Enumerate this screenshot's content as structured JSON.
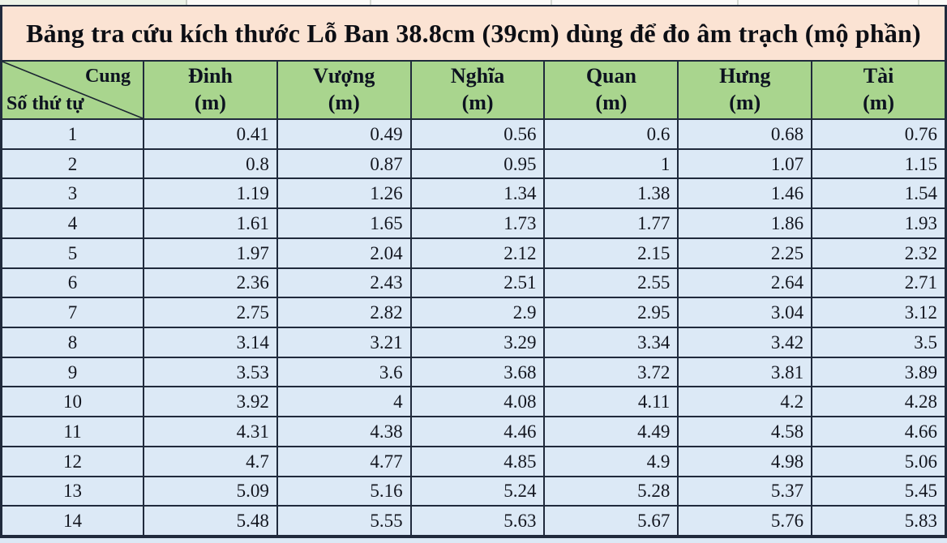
{
  "title": "Bảng tra cứu kích thước Lỗ Ban 38.8cm (39cm) dùng để đo âm trạch (mộ phần)",
  "table": {
    "corner": {
      "top_right": "Cung",
      "bottom_left": "Số thứ tự"
    },
    "columns": [
      {
        "name": "Đinh",
        "unit": "(m)"
      },
      {
        "name": "Vượng",
        "unit": "(m)"
      },
      {
        "name": "Nghĩa",
        "unit": "(m)"
      },
      {
        "name": "Quan",
        "unit": "(m)"
      },
      {
        "name": "Hưng",
        "unit": "(m)"
      },
      {
        "name": "Tài",
        "unit": "(m)"
      }
    ],
    "rows": [
      {
        "stt": "1",
        "values": [
          "0.41",
          "0.49",
          "0.56",
          "0.6",
          "0.68",
          "0.76"
        ]
      },
      {
        "stt": "2",
        "values": [
          "0.8",
          "0.87",
          "0.95",
          "1",
          "1.07",
          "1.15"
        ]
      },
      {
        "stt": "3",
        "values": [
          "1.19",
          "1.26",
          "1.34",
          "1.38",
          "1.46",
          "1.54"
        ]
      },
      {
        "stt": "4",
        "values": [
          "1.61",
          "1.65",
          "1.73",
          "1.77",
          "1.86",
          "1.93"
        ]
      },
      {
        "stt": "5",
        "values": [
          "1.97",
          "2.04",
          "2.12",
          "2.15",
          "2.25",
          "2.32"
        ]
      },
      {
        "stt": "6",
        "values": [
          "2.36",
          "2.43",
          "2.51",
          "2.55",
          "2.64",
          "2.71"
        ]
      },
      {
        "stt": "7",
        "values": [
          "2.75",
          "2.82",
          "2.9",
          "2.95",
          "3.04",
          "3.12"
        ]
      },
      {
        "stt": "8",
        "values": [
          "3.14",
          "3.21",
          "3.29",
          "3.34",
          "3.42",
          "3.5"
        ]
      },
      {
        "stt": "9",
        "values": [
          "3.53",
          "3.6",
          "3.68",
          "3.72",
          "3.81",
          "3.89"
        ]
      },
      {
        "stt": "10",
        "values": [
          "3.92",
          "4",
          "4.08",
          "4.11",
          "4.2",
          "4.28"
        ]
      },
      {
        "stt": "11",
        "values": [
          "4.31",
          "4.38",
          "4.46",
          "4.49",
          "4.58",
          "4.66"
        ]
      },
      {
        "stt": "12",
        "values": [
          "4.7",
          "4.77",
          "4.85",
          "4.9",
          "4.98",
          "5.06"
        ]
      },
      {
        "stt": "13",
        "values": [
          "5.09",
          "5.16",
          "5.24",
          "5.28",
          "5.37",
          "5.45"
        ]
      },
      {
        "stt": "14",
        "values": [
          "5.48",
          "5.55",
          "5.63",
          "5.67",
          "5.76",
          "5.83"
        ]
      }
    ]
  },
  "colors": {
    "title_background": "#fbe3d3",
    "header_background": "#a9d58e",
    "row_background": "#dce9f6",
    "border": "#202a3c",
    "text": "#13161f"
  }
}
